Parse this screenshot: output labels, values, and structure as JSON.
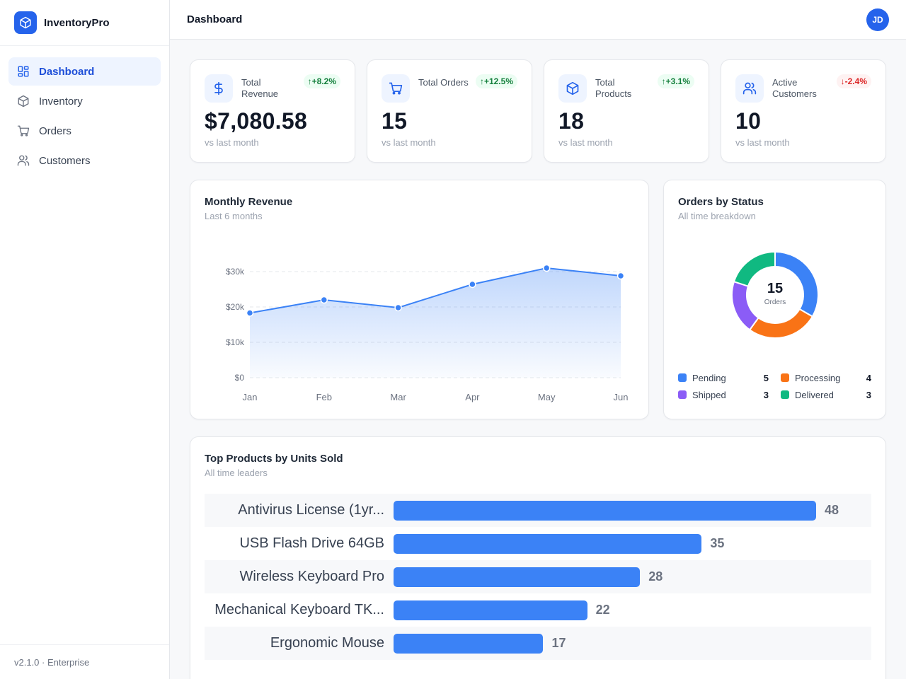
{
  "brand": {
    "name": "InventoryPro"
  },
  "sidebar": {
    "items": [
      {
        "label": "Dashboard",
        "icon": "dashboard-icon",
        "active": true
      },
      {
        "label": "Inventory",
        "icon": "box-icon"
      },
      {
        "label": "Orders",
        "icon": "cart-icon"
      },
      {
        "label": "Customers",
        "icon": "users-icon"
      }
    ],
    "footer": "v2.1.0 · Enterprise"
  },
  "header": {
    "title": "Dashboard",
    "avatar": "JD"
  },
  "stats": [
    {
      "label": "Total Revenue",
      "value": "$7,080.58",
      "change": "+8.2%",
      "trend": "up",
      "sub": "vs last month",
      "icon": "dollar-icon"
    },
    {
      "label": "Total Orders",
      "value": "15",
      "change": "+12.5%",
      "trend": "up",
      "sub": "vs last month",
      "icon": "cart-icon"
    },
    {
      "label": "Total Products",
      "value": "18",
      "change": "+3.1%",
      "trend": "up",
      "sub": "vs last month",
      "icon": "box-icon"
    },
    {
      "label": "Active Customers",
      "value": "10",
      "change": "-2.4%",
      "trend": "down",
      "sub": "vs last month",
      "icon": "users-icon"
    }
  ],
  "revenue": {
    "title": "Monthly Revenue",
    "subtitle": "Last 6 months"
  },
  "status": {
    "title": "Orders by Status",
    "subtitle": "All time breakdown",
    "total": "15",
    "total_label": "Orders"
  },
  "products": {
    "title": "Top Products by Units Sold",
    "subtitle": "All time leaders"
  },
  "colors": {
    "accent": "#2563eb",
    "line": "#3b82f6",
    "pending": "#3b82f6",
    "processing": "#f97316",
    "shipped": "#8b5cf6",
    "delivered": "#10b981"
  },
  "chart_data": [
    {
      "type": "area",
      "title": "Monthly Revenue",
      "subtitle": "Last 6 months",
      "categories": [
        "Jan",
        "Feb",
        "Mar",
        "Apr",
        "May",
        "Jun"
      ],
      "values": [
        18300,
        22000,
        19800,
        26400,
        31000,
        28800
      ],
      "ylim": [
        0,
        30000
      ],
      "yticks": [
        0,
        10000,
        20000,
        30000
      ],
      "ytick_labels": [
        "$0",
        "$10k",
        "$20k",
        "$30k"
      ],
      "grid": true
    },
    {
      "type": "pie",
      "title": "Orders by Status",
      "subtitle": "All time breakdown",
      "labels": [
        "Pending",
        "Processing",
        "Shipped",
        "Delivered"
      ],
      "values": [
        5,
        4,
        3,
        3
      ],
      "colors": [
        "#3b82f6",
        "#f97316",
        "#8b5cf6",
        "#10b981"
      ],
      "donut": true
    },
    {
      "type": "bar",
      "orientation": "horizontal",
      "title": "Top Products by Units Sold",
      "subtitle": "All time leaders",
      "categories": [
        "Antivirus License (1yr...",
        "USB Flash Drive 64GB",
        "Wireless Keyboard Pro",
        "Mechanical Keyboard TK...",
        "Ergonomic Mouse"
      ],
      "values": [
        48,
        35,
        28,
        22,
        17
      ]
    }
  ]
}
